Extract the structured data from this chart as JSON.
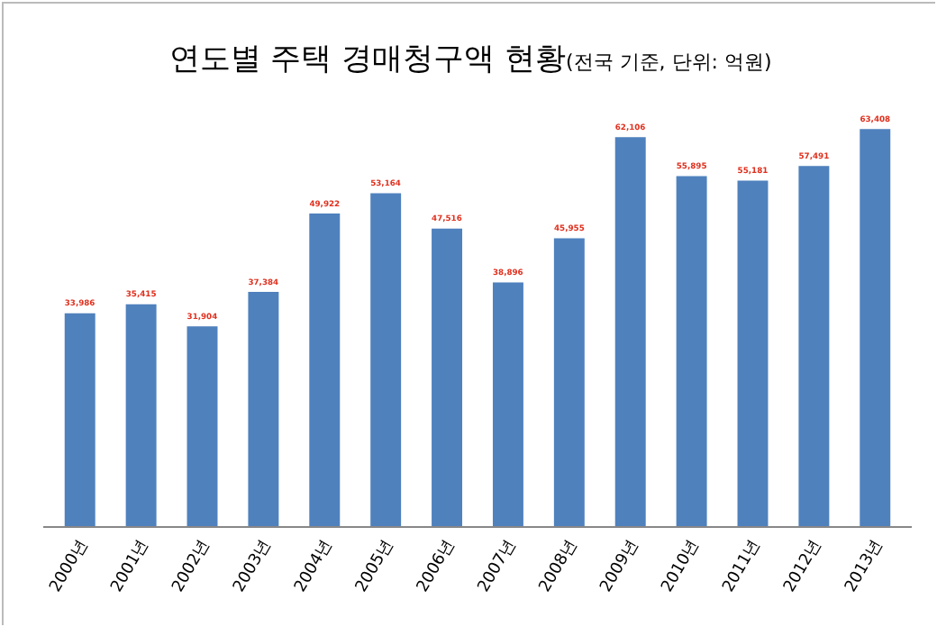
{
  "chart_data": {
    "type": "bar",
    "title": "연도별 주택 경매청구액 현황",
    "subtitle": "(전국 기준, 단위: 억원)",
    "categories": [
      "2000년",
      "2001년",
      "2002년",
      "2003년",
      "2004년",
      "2005년",
      "2006년",
      "2007년",
      "2008년",
      "2009년",
      "2010년",
      "2011년",
      "2012년",
      "2013년"
    ],
    "values": [
      33986,
      35415,
      31904,
      37384,
      49922,
      53164,
      47516,
      38896,
      45955,
      62106,
      55895,
      55181,
      57491,
      63408
    ],
    "value_labels": [
      "33,986",
      "35,415",
      "31,904",
      "37,384",
      "49,922",
      "53,164",
      "47,516",
      "38,896",
      "45,955",
      "62,106",
      "55,895",
      "55,181",
      "57,491",
      "63,408"
    ],
    "color": "#4f81bd",
    "grid": false,
    "legend": false,
    "tick_labels": "x"
  }
}
